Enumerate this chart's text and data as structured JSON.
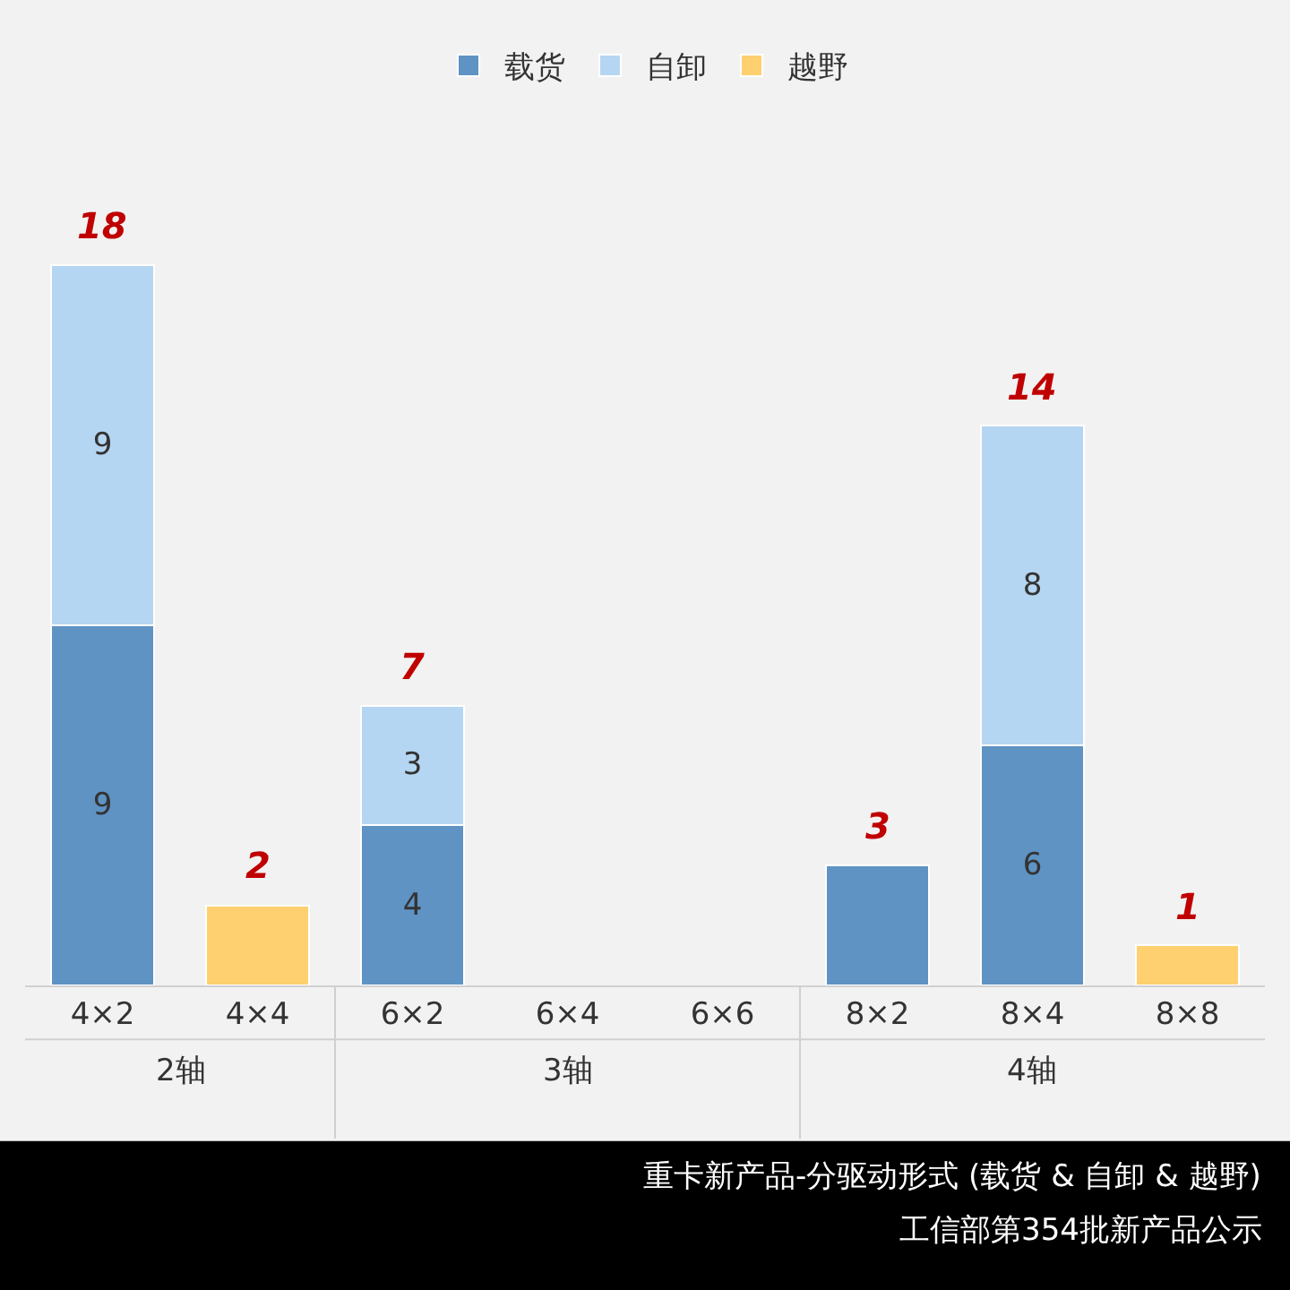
{
  "chart_data": {
    "type": "bar",
    "stacked": true,
    "title": "重卡新产品-分驱动形式 (载货 & 自卸 & 越野)",
    "subtitle": "工信部第354批新产品公示",
    "categories": [
      "4×2",
      "4×4",
      "6×2",
      "6×4",
      "6×6",
      "8×2",
      "8×4",
      "8×8"
    ],
    "series": [
      {
        "name": "载货",
        "color": "#5e93c4",
        "values": [
          9,
          null,
          4,
          null,
          null,
          3,
          6,
          null
        ],
        "value_labels": [
          "9",
          null,
          "4",
          null,
          null,
          null,
          "6",
          null
        ]
      },
      {
        "name": "自卸",
        "color": "#b5d6f2",
        "values": [
          9,
          null,
          3,
          null,
          null,
          null,
          8,
          null
        ],
        "value_labels": [
          "9",
          null,
          "3",
          null,
          null,
          null,
          "8",
          null
        ]
      },
      {
        "name": "越野",
        "color": "#ffd06f",
        "values": [
          null,
          2,
          null,
          null,
          null,
          null,
          null,
          1
        ],
        "value_labels": [
          null,
          null,
          null,
          null,
          null,
          null,
          null,
          null
        ]
      }
    ],
    "totals": [
      "18",
      "2",
      "7",
      null,
      null,
      "3",
      "14",
      "1"
    ],
    "annotations": [
      "2轴",
      "3轴",
      "4轴"
    ],
    "legend": "top",
    "grid": false
  }
}
